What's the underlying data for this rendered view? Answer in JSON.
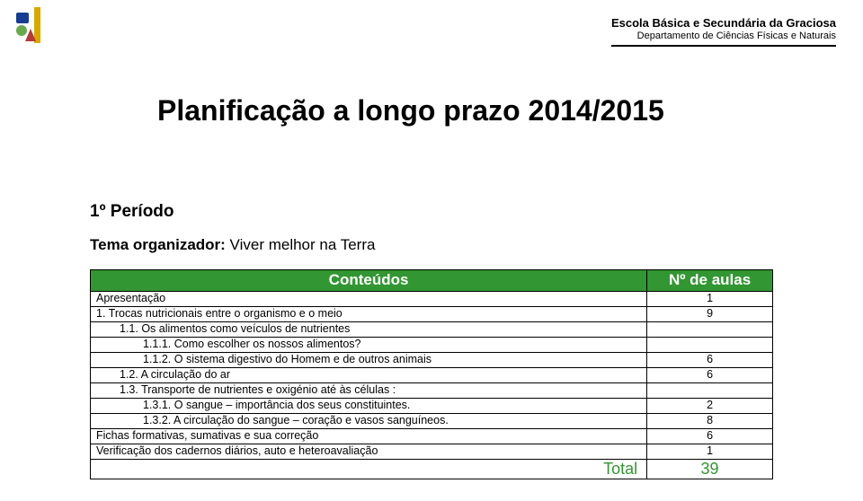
{
  "header": {
    "school": "Escola Básica e Secundária da Graciosa",
    "department": "Departamento de Ciências Físicas e Naturais"
  },
  "title": "Planificação a longo prazo 2014/2015",
  "periodo": "1º Período",
  "tema_label": "Tema organizador:",
  "tema_value": " Viver melhor na Terra",
  "table": {
    "headers": {
      "conteudos": "Conteúdos",
      "aulas": "Nº de aulas"
    },
    "rows": [
      {
        "indent": 0,
        "text": "Apresentação",
        "aulas": "1"
      },
      {
        "indent": 0,
        "text": "1.    Trocas nutricionais entre o organismo e o meio",
        "aulas": "9"
      },
      {
        "indent": 1,
        "text": "1.1.   Os alimentos como veículos de nutrientes",
        "aulas": ""
      },
      {
        "indent": 2,
        "text": "1.1.1.  Como escolher os nossos alimentos?",
        "aulas": ""
      },
      {
        "indent": 2,
        "text": "1.1.2.  O sistema digestivo do Homem e de outros animais",
        "aulas": "6"
      },
      {
        "indent": 1,
        "text": "1.2.   A circulação do ar",
        "aulas": "6"
      },
      {
        "indent": 1,
        "text": "1.3.   Transporte de nutrientes e oxigénio até às células :",
        "aulas": ""
      },
      {
        "indent": 2,
        "text": "1.3.1.    O sangue – importância dos seus constituintes.",
        "aulas": "2"
      },
      {
        "indent": 2,
        "text": "1.3.2.    A circulação do sangue – coração e vasos sanguíneos.",
        "aulas": "8"
      },
      {
        "indent": 0,
        "text": "Fichas  formativas, sumativas e sua correção",
        "aulas": "6"
      },
      {
        "indent": 0,
        "text": "Verificação dos cadernos diários, auto e heteroavaliação",
        "aulas": "1"
      }
    ],
    "total_label": "Total",
    "total_value": "39"
  },
  "styles": {
    "header_bg": "#329632",
    "header_fg": "#ffffff",
    "total_color": "#329632",
    "border_color": "#000000",
    "body_bg": "#ffffff"
  },
  "logo": {
    "bar_color": "#d9a800",
    "shape_colors": [
      "#163d8f",
      "#6aa84f",
      "#b43a3a"
    ]
  }
}
